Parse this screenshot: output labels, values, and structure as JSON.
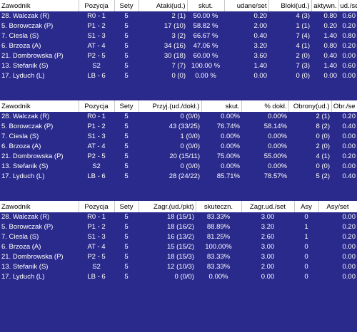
{
  "tables": [
    {
      "headers": [
        "Zawodnik",
        "Pozycja",
        "Sety",
        "Ataki(ud.)",
        "skut.",
        "udane/set",
        "Bloki(ud.)",
        "aktywn.",
        "ud./se"
      ],
      "rows": [
        [
          "28. Walczak (R)",
          "R0 - 1",
          "5",
          "2 (1)",
          "50.00 %",
          "0.20",
          "4 (3)",
          "0.80",
          "0.60"
        ],
        [
          "5. Borowczak (P)",
          "P1 - 2",
          "5",
          "17 (10)",
          "58.82 %",
          "2.00",
          "1 (1)",
          "0.20",
          "0.20"
        ],
        [
          "7. Ciesla (S)",
          "S1 - 3",
          "5",
          "3 (2)",
          "66.67 %",
          "0.40",
          "7 (4)",
          "1.40",
          "0.80"
        ],
        [
          "6. Brzoza (A)",
          "AT - 4",
          "5",
          "34 (16)",
          "47.06 %",
          "3.20",
          "4 (1)",
          "0.80",
          "0.20"
        ],
        [
          "21. Dombrowska (P)",
          "P2 - 5",
          "5",
          "30 (18)",
          "60.00 %",
          "3.60",
          "2 (0)",
          "0.40",
          "0.00"
        ],
        [
          "13. Stefanik (S)",
          "S2",
          "5",
          "7 (7)",
          "100.00 %",
          "1.40",
          "7 (3)",
          "1.40",
          "0.60"
        ],
        [
          "17. Lyduch (L)",
          "LB - 6",
          "5",
          "0 (0)",
          "0.00 %",
          "0.00",
          "0 (0)",
          "0.00",
          "0.00"
        ]
      ]
    },
    {
      "headers": [
        "Zawodnik",
        "Pozycja",
        "Sety",
        "Przyj.(ud./dokł.)",
        "skut.",
        "% dokł.",
        "Obrony(ud.)",
        "Obr./se"
      ],
      "rows": [
        [
          "28. Walczak (R)",
          "R0 - 1",
          "5",
          "0 (0/0)",
          "0.00%",
          "0.00%",
          "2 (1)",
          "0.20"
        ],
        [
          "5. Borowczak (P)",
          "P1 - 2",
          "5",
          "43 (33/25)",
          "76.74%",
          "58.14%",
          "8 (2)",
          "0.40"
        ],
        [
          "7. Ciesla (S)",
          "S1 - 3",
          "5",
          "1 (0/0)",
          "0.00%",
          "0.00%",
          "0 (0)",
          "0.00"
        ],
        [
          "6. Brzoza (A)",
          "AT - 4",
          "5",
          "0 (0/0)",
          "0.00%",
          "0.00%",
          "2 (0)",
          "0.00"
        ],
        [
          "21. Dombrowska (P)",
          "P2 - 5",
          "5",
          "20 (15/11)",
          "75.00%",
          "55.00%",
          "4 (1)",
          "0.20"
        ],
        [
          "13. Stefanik (S)",
          "S2",
          "5",
          "0 (0/0)",
          "0.00%",
          "0.00%",
          "0 (0)",
          "0.00"
        ],
        [
          "17. Lyduch (L)",
          "LB - 6",
          "5",
          "28 (24/22)",
          "85.71%",
          "78.57%",
          "5 (2)",
          "0.40"
        ]
      ]
    },
    {
      "headers": [
        "Zawodnik",
        "Pozycja",
        "Sety",
        "Zagr.(ud./pkt)",
        "skuteczn.",
        "Zagr.ud./set",
        "Asy",
        "Asy/set"
      ],
      "rows": [
        [
          "28. Walczak (R)",
          "R0 - 1",
          "5",
          "18 (15/1)",
          "83.33%",
          "3.00",
          "0",
          "0.00"
        ],
        [
          "5. Borowczak (P)",
          "P1 - 2",
          "5",
          "18 (16/2)",
          "88.89%",
          "3.20",
          "1",
          "0.20"
        ],
        [
          "7. Ciesla (S)",
          "S1 - 3",
          "5",
          "16 (13/2)",
          "81.25%",
          "2.60",
          "1",
          "0.20"
        ],
        [
          "6. Brzoza (A)",
          "AT - 4",
          "5",
          "15 (15/2)",
          "100.00%",
          "3.00",
          "0",
          "0.00"
        ],
        [
          "21. Dombrowska (P)",
          "P2 - 5",
          "5",
          "18 (15/3)",
          "83.33%",
          "3.00",
          "0",
          "0.00"
        ],
        [
          "13. Stefanik (S)",
          "S2",
          "5",
          "12 (10/3)",
          "83.33%",
          "2.00",
          "0",
          "0.00"
        ],
        [
          "17. Lyduch (L)",
          "LB - 6",
          "5",
          "0 (0/0)",
          "0.00%",
          "0.00",
          "0",
          "0.00"
        ]
      ]
    }
  ]
}
